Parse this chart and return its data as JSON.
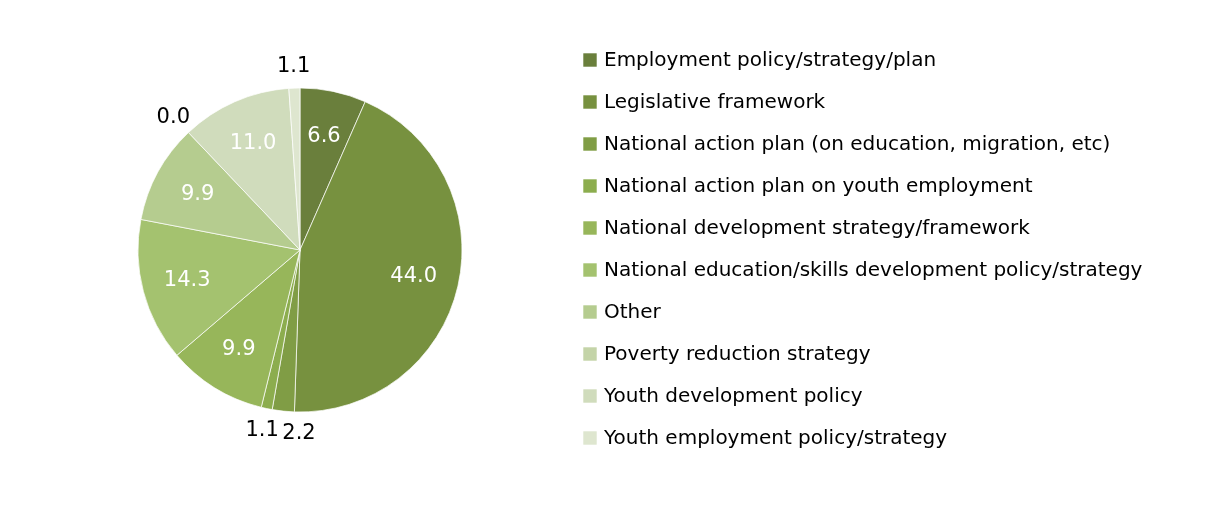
{
  "chart_data": {
    "type": "pie",
    "categories": [
      "Employment policy/strategy/plan",
      "Legislative framework",
      "National action plan (on education, migration, etc)",
      "National action plan on youth employment",
      "National development strategy/framework",
      "National education/skills development policy/strategy",
      "Other",
      "Poverty reduction strategy",
      "Youth development policy",
      "Youth employment policy/strategy"
    ],
    "values": [
      6.6,
      44.0,
      2.2,
      1.1,
      9.9,
      14.3,
      9.9,
      0.0,
      11.0,
      1.1
    ],
    "colors": [
      "#6a7f3c",
      "#77913f",
      "#809d45",
      "#8cad4e",
      "#97b65a",
      "#a4c26f",
      "#b5cc8f",
      "#c4d4a8",
      "#d0dcbc",
      "#dee6cf"
    ],
    "value_labels": [
      "6.6",
      "44.0",
      "2.2",
      "1.1",
      "9.9",
      "14.3",
      "9.9",
      "0.0",
      "11.0",
      "1.1"
    ],
    "legend": "right"
  }
}
